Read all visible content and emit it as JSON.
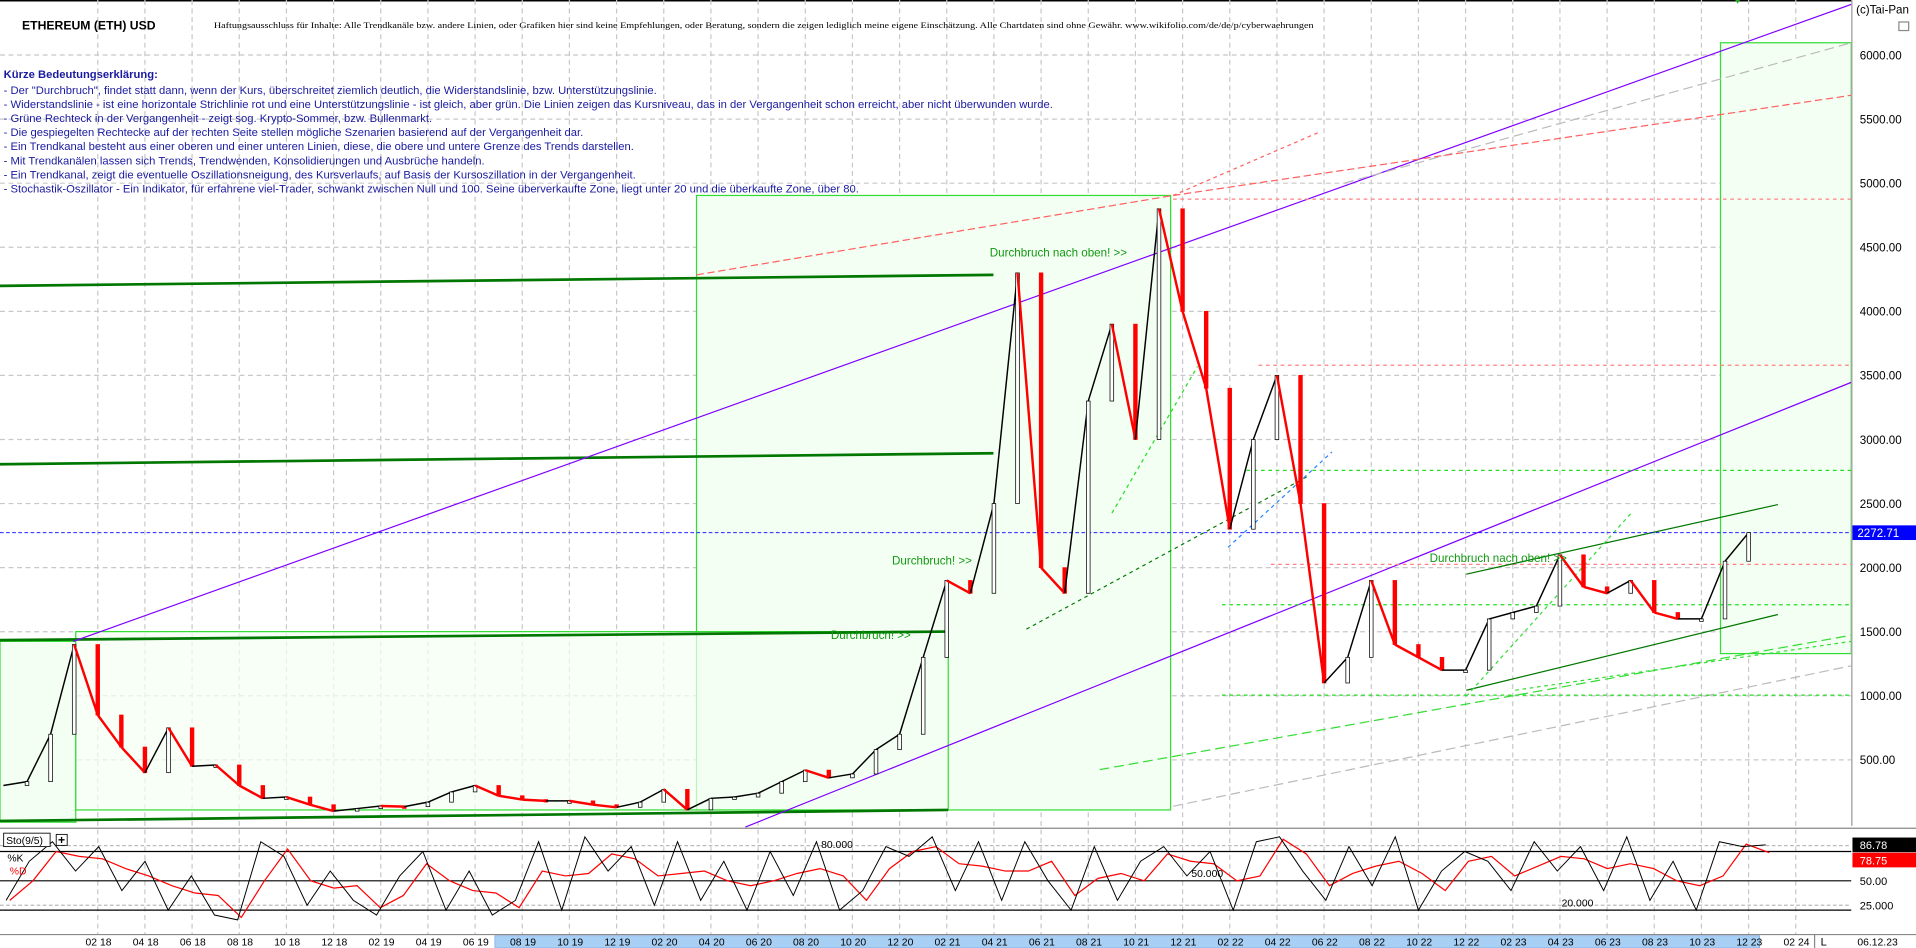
{
  "header": {
    "title": "ETHEREUM (ETH) USD",
    "disclaimer": "Haftungsausschluss für Inhalte: Alle Trendkanäle bzw. andere Linien, oder Grafiken hier sind keine Empfehlungen, oder Beratung, sondern die zeigen lediglich meine eigene Einschätzung. Alle Chartdaten sind ohne Gewähr.  www.wikifolio.com/de/de/p/cyberwaehrungen",
    "copyright": "(c)Tai-Pan"
  },
  "legend": {
    "heading": "Kürze Bedeutungserklärung:",
    "lines": [
      "- Der \"Durchbruch\", findet statt dann, wenn der Kurs, überschreitet ziemlich deutlich, die Widerstandslinie, bzw. Unterstützungslinie.",
      "- Widerstandslinie - ist eine horizontale Strichlinie rot und eine Unterstützungslinie - ist gleich, aber grün. Die Linien zeigen das Kursniveau, das in der Vergangenheit schon erreicht, aber nicht überwunden wurde.",
      "- Grüne Rechteck in der Vergangenheit - zeigt sog. Krypto-Sommer, bzw. Bullenmarkt.",
      "- Die gespiegelten Rechtecke auf der rechten Seite stellen mögliche Szenarien basierend auf der Vergangenheit dar.",
      "- Ein Trendkanal besteht aus einer oberen und einer unteren Linien, diese, die obere und untere Grenze des Trends darstellen.",
      "- Mit Trendkanälen lassen sich Trends, Trendwenden, Konsolidierungen und Ausbrüche handeln.",
      "- Ein Trendkanal, zeigt die eventuelle Oszillationsneigung, des Kursverlaufs, auf Basis der Kursoszillation in der Vergangenheit.",
      "- Stochastik-Oszillator - Ein Indikator, für erfahrene viel-Trader, schwankt zwischen Null und 100. Seine überverkaufte Zone, liegt unter 20 und die überkaufte Zone, über 80."
    ]
  },
  "annotations": [
    "Durchbruch nach oben! >>",
    "Durchbruch! >>",
    "Durchbruch! >>",
    "Durchbruch nach oben! >>"
  ],
  "colors": {
    "up": "#000000",
    "down": "#ff0000",
    "trend_channel": "#8000ff",
    "support": "#00cc00",
    "resistance": "#ff8080",
    "bull_rect": "#00dd00",
    "last_price": "#0000ff"
  },
  "chart_data": {
    "type": "candlestick",
    "ylim": [
      0,
      6200
    ],
    "y_ticks": [
      500,
      1000,
      1500,
      2000,
      2500,
      3000,
      3500,
      4000,
      4500,
      5000,
      5500,
      6000
    ],
    "y_tick_labels": [
      "500.00",
      "1000.00",
      "1500.00",
      "2000.00",
      "2500.00",
      "3000.00",
      "3500.00",
      "4000.00",
      "4500.00",
      "5000.00",
      "5500.00",
      "6000.00"
    ],
    "last_price": 2272.71,
    "last_price_label": "2272.71",
    "grid": true,
    "x_tick_labels": [
      "02 18",
      "04 18",
      "06 18",
      "08 18",
      "10 18",
      "12 18",
      "02 19",
      "04 19",
      "06 19",
      "08 19",
      "10 19",
      "12 19",
      "02 20",
      "04 20",
      "06 20",
      "08 20",
      "10 20",
      "12 20",
      "02 21",
      "04 21",
      "06 21",
      "08 21",
      "10 21",
      "12 21",
      "02 22",
      "04 22",
      "06 22",
      "08 22",
      "10 22",
      "12 22",
      "02 23",
      "04 23",
      "06 23",
      "08 23",
      "10 23",
      "12 23",
      "02 24"
    ],
    "x_end_label": "06.12.23",
    "x_mode_label": "L",
    "series": [
      [
        "2017-10",
        300
      ],
      [
        "2017-11",
        330
      ],
      [
        "2017-12",
        700
      ],
      [
        "2018-01",
        1400
      ],
      [
        "2018-02",
        850
      ],
      [
        "2018-03",
        600
      ],
      [
        "2018-04",
        400
      ],
      [
        "2018-05",
        750
      ],
      [
        "2018-06",
        450
      ],
      [
        "2018-07",
        460
      ],
      [
        "2018-08",
        300
      ],
      [
        "2018-09",
        200
      ],
      [
        "2018-10",
        210
      ],
      [
        "2018-11",
        150
      ],
      [
        "2018-12",
        100
      ],
      [
        "2019-01",
        120
      ],
      [
        "2019-02",
        140
      ],
      [
        "2019-03",
        135
      ],
      [
        "2019-04",
        170
      ],
      [
        "2019-05",
        250
      ],
      [
        "2019-06",
        300
      ],
      [
        "2019-07",
        220
      ],
      [
        "2019-08",
        190
      ],
      [
        "2019-09",
        180
      ],
      [
        "2019-10",
        180
      ],
      [
        "2019-11",
        150
      ],
      [
        "2019-12",
        130
      ],
      [
        "2020-01",
        170
      ],
      [
        "2020-02",
        270
      ],
      [
        "2020-03",
        110
      ],
      [
        "2020-04",
        200
      ],
      [
        "2020-05",
        210
      ],
      [
        "2020-06",
        240
      ],
      [
        "2020-07",
        330
      ],
      [
        "2020-08",
        420
      ],
      [
        "2020-09",
        360
      ],
      [
        "2020-10",
        390
      ],
      [
        "2020-11",
        580
      ],
      [
        "2020-12",
        700
      ],
      [
        "2021-01",
        1300
      ],
      [
        "2021-02",
        1900
      ],
      [
        "2021-03",
        1800
      ],
      [
        "2021-04",
        2500
      ],
      [
        "2021-05",
        4300
      ],
      [
        "2021-06",
        2000
      ],
      [
        "2021-07",
        1800
      ],
      [
        "2021-08",
        3300
      ],
      [
        "2021-09",
        3900
      ],
      [
        "2021-10",
        3000
      ],
      [
        "2021-11",
        4800
      ],
      [
        "2021-12",
        4000
      ],
      [
        "2022-01",
        3400
      ],
      [
        "2022-02",
        2300
      ],
      [
        "2022-03",
        3000
      ],
      [
        "2022-04",
        3500
      ],
      [
        "2022-05",
        2500
      ],
      [
        "2022-06",
        1100
      ],
      [
        "2022-07",
        1300
      ],
      [
        "2022-08",
        1900
      ],
      [
        "2022-09",
        1400
      ],
      [
        "2022-10",
        1300
      ],
      [
        "2022-11",
        1200
      ],
      [
        "2022-12",
        1200
      ],
      [
        "2023-01",
        1600
      ],
      [
        "2023-02",
        1650
      ],
      [
        "2023-03",
        1700
      ],
      [
        "2023-04",
        2100
      ],
      [
        "2023-05",
        1850
      ],
      [
        "2023-06",
        1800
      ],
      [
        "2023-07",
        1900
      ],
      [
        "2023-08",
        1650
      ],
      [
        "2023-09",
        1600
      ],
      [
        "2023-10",
        1600
      ],
      [
        "2023-11",
        2050
      ],
      [
        "2023-12",
        2272.71
      ]
    ]
  },
  "stochastic": {
    "title": "Sto(9/5)",
    "k_label": "%K",
    "d_label": "%D",
    "levels": [
      80,
      50,
      20
    ],
    "level_labels": [
      "80.000",
      "50.000",
      "20.000"
    ],
    "axis_labels": [
      "50.00",
      "25.000"
    ],
    "k_value": "86.78",
    "d_value": "78.75",
    "k_values": [
      30,
      70,
      90,
      60,
      85,
      40,
      70,
      20,
      55,
      15,
      10,
      90,
      75,
      25,
      60,
      30,
      15,
      55,
      80,
      20,
      60,
      15,
      30,
      90,
      20,
      95,
      60,
      85,
      25,
      90,
      30,
      70,
      20,
      80,
      35,
      90,
      20,
      40,
      85,
      75,
      95,
      40,
      90,
      30,
      90,
      50,
      20,
      85,
      30,
      70,
      85,
      55,
      80,
      20,
      90,
      95,
      60,
      30,
      85,
      45,
      95,
      20,
      60,
      80,
      70,
      40,
      90,
      60,
      85,
      40,
      95,
      30,
      70,
      20,
      90,
      85,
      86.78
    ]
  }
}
